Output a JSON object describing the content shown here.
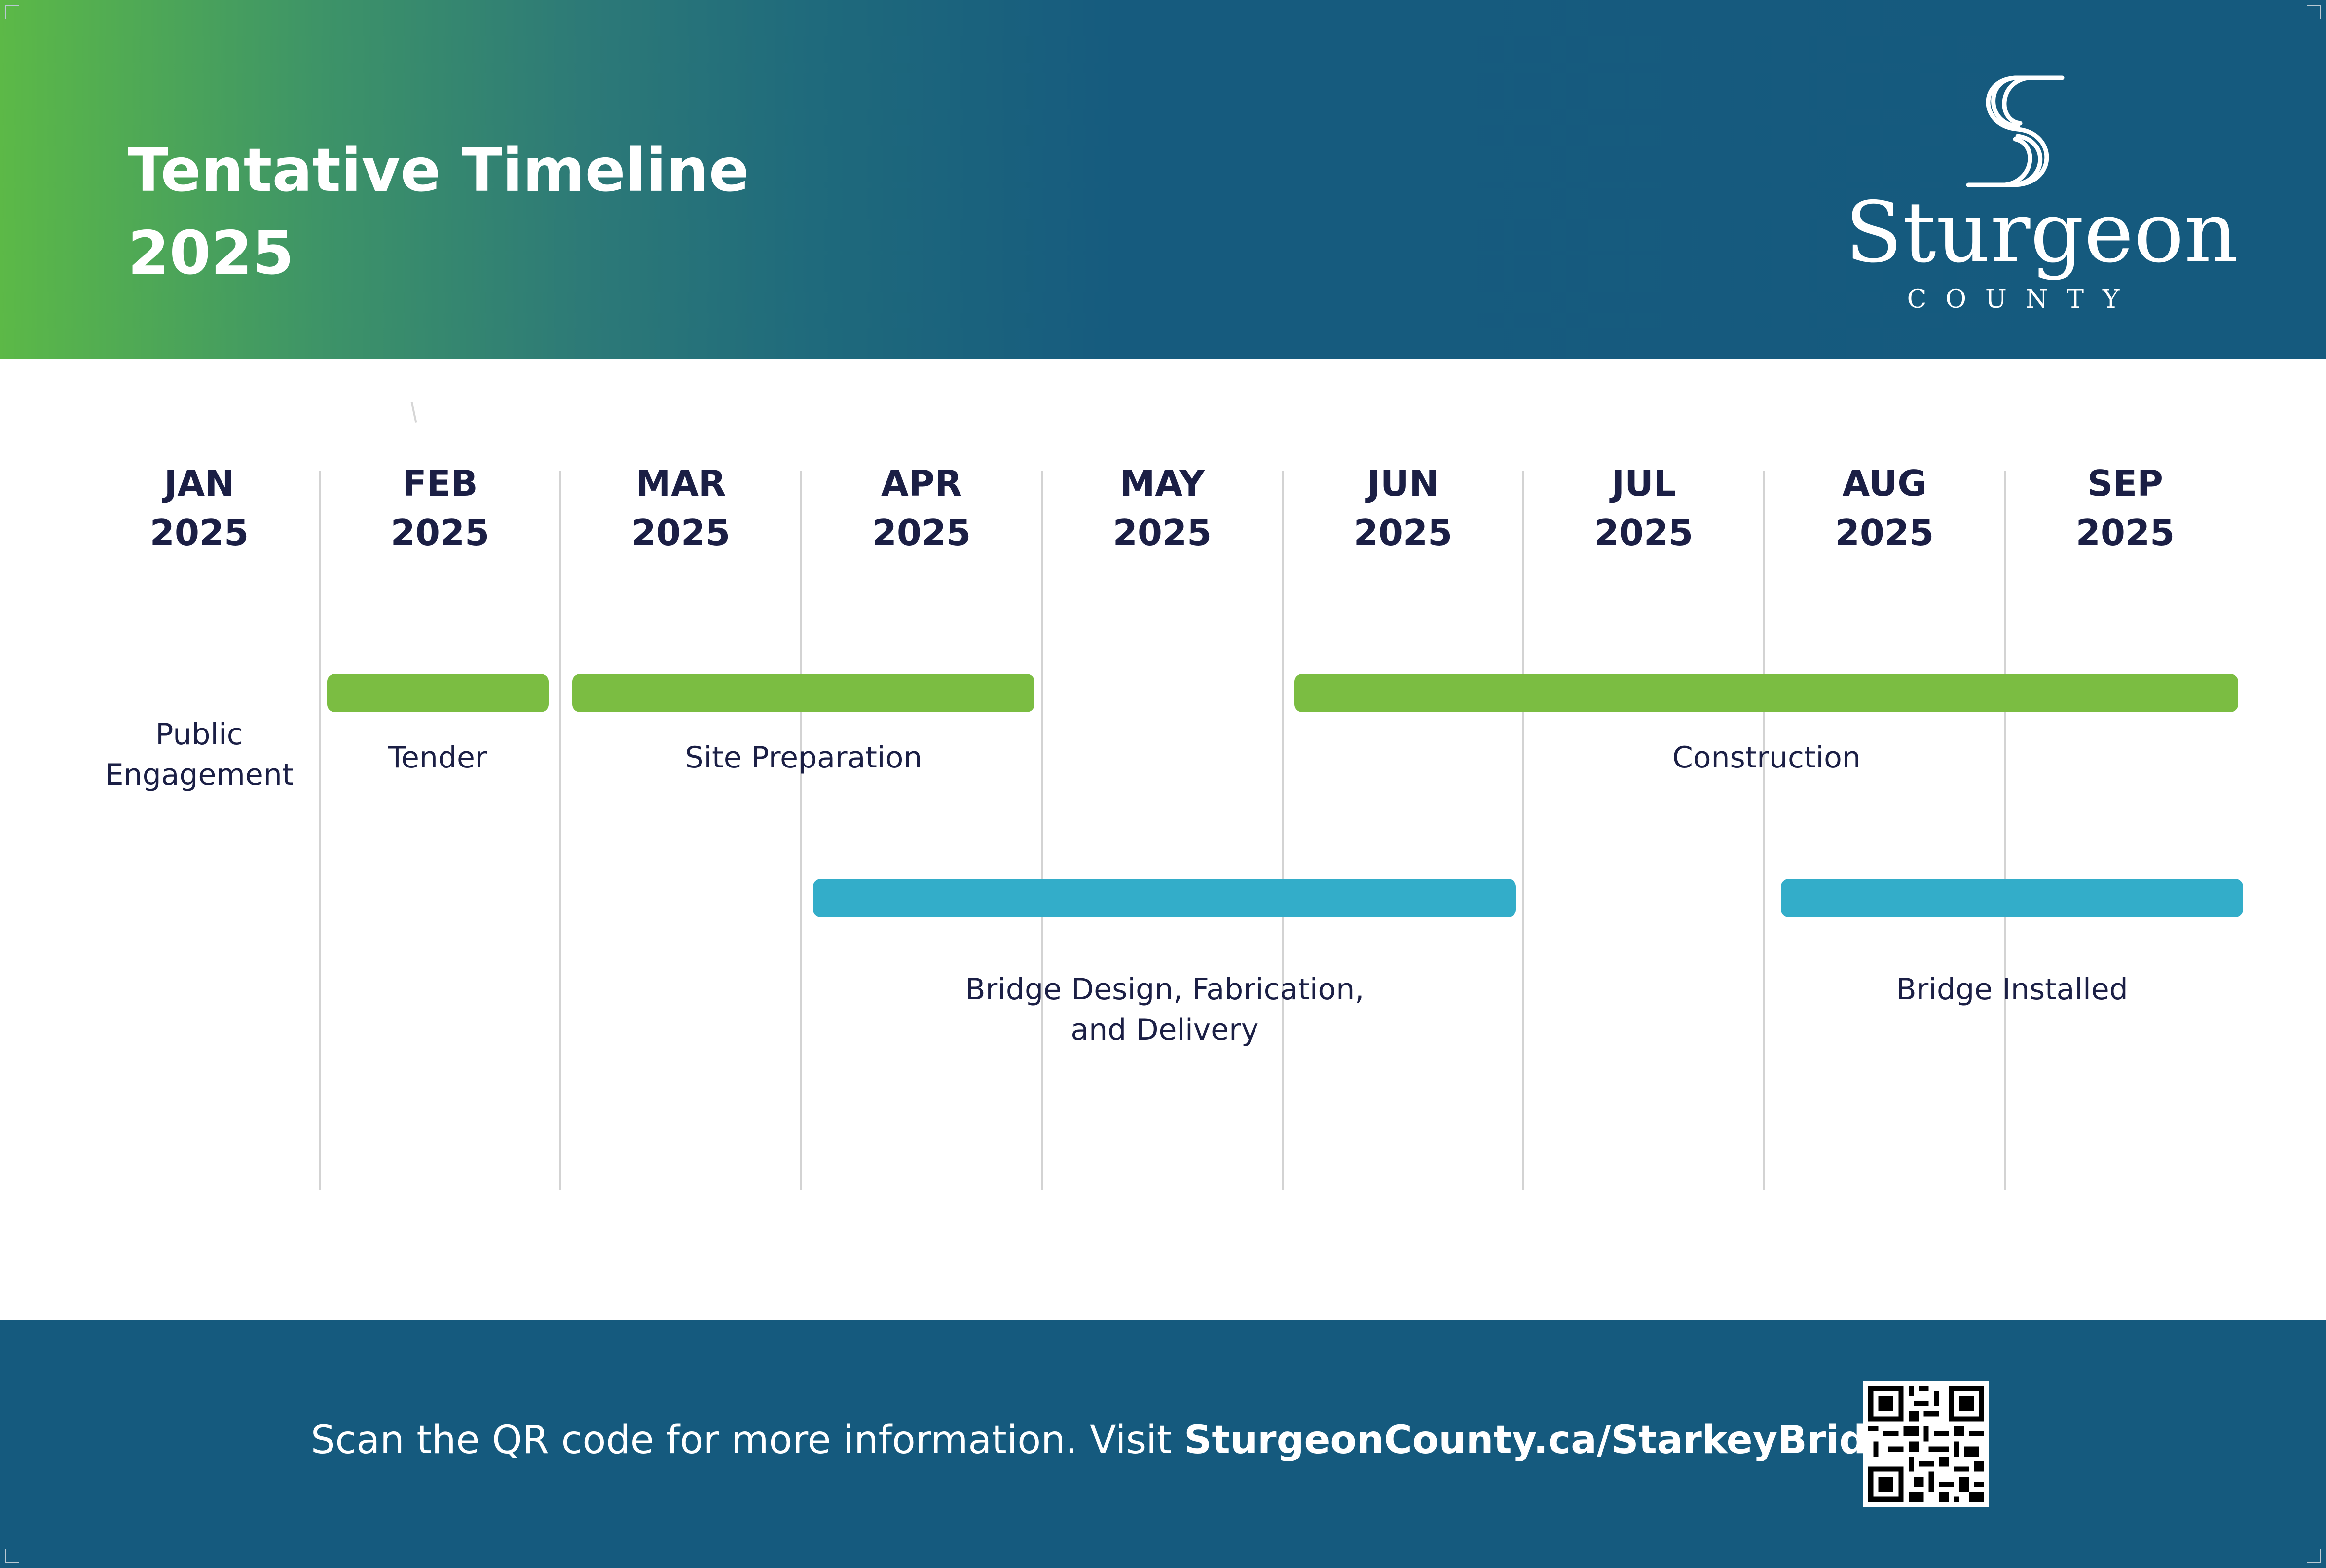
{
  "header": {
    "title": "Tentative Timeline\n2025",
    "logo_name": "Sturgeon",
    "logo_sub": "COUNTY"
  },
  "chart_data": {
    "type": "gantt",
    "months": [
      "JAN\n2025",
      "FEB\n2025",
      "MAR\n2025",
      "APR\n2025",
      "MAY\n2025",
      "JUN\n2025",
      "JUL\n2025",
      "AUG\n2025",
      "SEP\n2025"
    ],
    "tasks": [
      {
        "label": "Public\nEngagement",
        "start": null,
        "end": null,
        "row": 0,
        "color": "#7bbd42"
      },
      {
        "label": "Tender",
        "start": 1.03,
        "end": 1.95,
        "row": 0,
        "color": "#7bbd42"
      },
      {
        "label": "Site Preparation",
        "start": 2.05,
        "end": 3.97,
        "row": 0,
        "color": "#7bbd42"
      },
      {
        "label": "Construction",
        "start": 5.05,
        "end": 8.97,
        "row": 0,
        "color": "#7bbd42"
      },
      {
        "label": "Bridge Design, Fabrication,\nand Delivery",
        "start": 3.05,
        "end": 5.97,
        "row": 1,
        "color": "#33adc9"
      },
      {
        "label": "Bridge Installed",
        "start": 7.07,
        "end": 8.99,
        "row": 1,
        "color": "#33adc9"
      }
    ]
  },
  "footer": {
    "text_prefix": "Scan the QR code for more information. Visit ",
    "text_link": "SturgeonCounty.ca/StarkeyBridge"
  }
}
